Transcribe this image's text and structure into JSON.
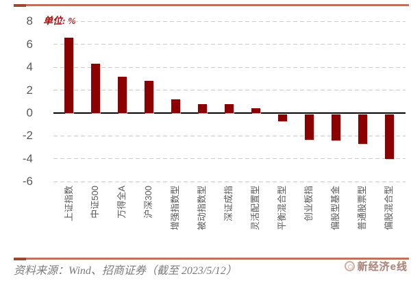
{
  "header": {
    "unit_label": "单位: %"
  },
  "chart_data": {
    "type": "bar",
    "title": "",
    "unit": "%",
    "categories": [
      "上证指数",
      "中证500",
      "万得全A",
      "沪深300",
      "增强指数型",
      "被动指数型",
      "深证成指",
      "灵活配置型",
      "平衡混合型",
      "创业板指",
      "偏股型基金",
      "普通股票型",
      "偏股混合型"
    ],
    "values": [
      6.6,
      4.3,
      3.2,
      2.8,
      1.2,
      0.8,
      0.8,
      0.4,
      -0.6,
      -2.2,
      -2.3,
      -2.6,
      -3.9
    ],
    "xlabel": "",
    "ylabel": "单位: %",
    "ylim": [
      -6,
      8
    ],
    "yticks": [
      8,
      6,
      4,
      2,
      0,
      -2,
      -4,
      -6
    ],
    "grid": true,
    "legend": false,
    "bar_color": "#8b0000",
    "gridline_color": "#cbcbcb",
    "axis_text_color": "#595959"
  },
  "footer": {
    "source_text": "资料来源：Wind、招商证券（截至 2023/5/12）",
    "logo_text": "新经济e线"
  },
  "colors": {
    "accent_line": "#c0715c",
    "accent_line_dark": "#9a4734",
    "unit_text": "#a50f0f",
    "source_text": "#7c7c7c"
  }
}
